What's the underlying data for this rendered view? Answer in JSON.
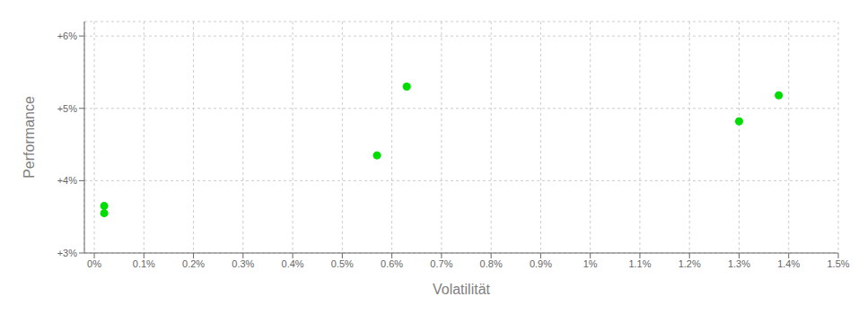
{
  "chart_data": {
    "type": "scatter",
    "xlabel": "Volatilität",
    "ylabel": "Performance",
    "x": [
      0.02,
      0.02,
      0.57,
      0.63,
      1.3,
      1.38
    ],
    "values": [
      3.65,
      3.55,
      4.35,
      5.3,
      4.82,
      5.18
    ],
    "color": "#00dd00",
    "xlim": [
      -0.02,
      1.5
    ],
    "ylim": [
      3.0,
      6.2
    ],
    "xticks": [
      {
        "value": 0.0,
        "label": "0%"
      },
      {
        "value": 0.1,
        "label": "0.1%"
      },
      {
        "value": 0.2,
        "label": "0.2%"
      },
      {
        "value": 0.3,
        "label": "0.3%"
      },
      {
        "value": 0.4,
        "label": "0.4%"
      },
      {
        "value": 0.5,
        "label": "0.5%"
      },
      {
        "value": 0.6,
        "label": "0.6%"
      },
      {
        "value": 0.7,
        "label": "0.7%"
      },
      {
        "value": 0.8,
        "label": "0.8%"
      },
      {
        "value": 0.9,
        "label": "0.9%"
      },
      {
        "value": 1.0,
        "label": "1%"
      },
      {
        "value": 1.1,
        "label": "1.1%"
      },
      {
        "value": 1.2,
        "label": "1.2%"
      },
      {
        "value": 1.3,
        "label": "1.3%"
      },
      {
        "value": 1.4,
        "label": "1.4%"
      },
      {
        "value": 1.5,
        "label": "1.5%"
      }
    ],
    "yticks": [
      {
        "value": 3.0,
        "label": "+3%"
      },
      {
        "value": 4.0,
        "label": "+4%"
      },
      {
        "value": 5.0,
        "label": "+5%"
      },
      {
        "value": 6.0,
        "label": "+6%"
      }
    ],
    "grid": true
  }
}
